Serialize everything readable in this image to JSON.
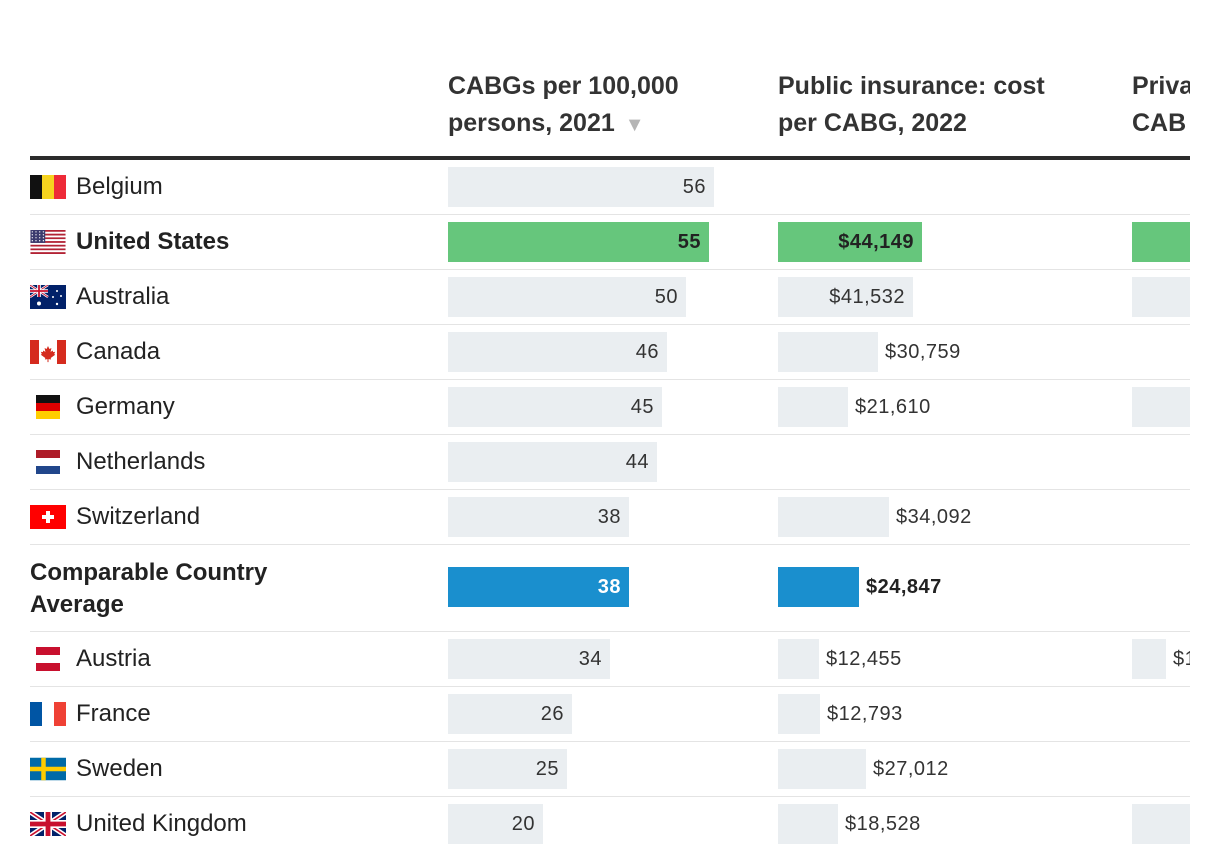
{
  "columns": [
    {
      "line1": "CABGs per 100,000",
      "line2": "persons, 2021",
      "sort_icon": "sort-down-icon"
    },
    {
      "line1": "Public insurance: cost",
      "line2": "per CABG, 2022"
    },
    {
      "line1": "Priva",
      "line2": "CAB"
    }
  ],
  "colors": {
    "bar_default": "#eaeef1",
    "bar_us": "#66c67c",
    "bar_average": "#1a8fce"
  },
  "chart_data": {
    "type": "table",
    "title": "",
    "columns": [
      "CABGs per 100,000 persons, 2021",
      "Public insurance: cost per CABG, 2022",
      "Private insurance: cost per CABG"
    ],
    "sort": "CABGs per 100,000 persons, 2021 (descending)",
    "rows": [
      {
        "country": "Belgium",
        "flag": "belgium-flag",
        "cabgs": 56,
        "cabgs_label": "56",
        "public_cost": null,
        "public_label": "",
        "private_visible": false
      },
      {
        "country": "United States",
        "flag": "us-flag",
        "highlight": "us",
        "cabgs": 55,
        "cabgs_label": "55",
        "public_cost": 44149,
        "public_label": "$44,149",
        "private_visible": true
      },
      {
        "country": "Australia",
        "flag": "australia-flag",
        "cabgs": 50,
        "cabgs_label": "50",
        "public_cost": 41532,
        "public_label": "$41,532",
        "private_visible": true
      },
      {
        "country": "Canada",
        "flag": "canada-flag",
        "cabgs": 46,
        "cabgs_label": "46",
        "public_cost": 30759,
        "public_label": "$30,759",
        "private_visible": false
      },
      {
        "country": "Germany",
        "flag": "germany-flag",
        "cabgs": 45,
        "cabgs_label": "45",
        "public_cost": 21610,
        "public_label": "$21,610",
        "private_visible": true
      },
      {
        "country": "Netherlands",
        "flag": "netherlands-flag",
        "cabgs": 44,
        "cabgs_label": "44",
        "public_cost": null,
        "public_label": "",
        "private_visible": false
      },
      {
        "country": "Switzerland",
        "flag": "switzerland-flag",
        "cabgs": 38,
        "cabgs_label": "38",
        "public_cost": 34092,
        "public_label": "$34,092",
        "private_visible": false
      },
      {
        "country": "Comparable Country Average",
        "flag": "",
        "highlight": "average",
        "cabgs": 38,
        "cabgs_label": "38",
        "public_cost": 24847,
        "public_label": "$24,847",
        "private_visible": false
      },
      {
        "country": "Austria",
        "flag": "austria-flag",
        "cabgs": 34,
        "cabgs_label": "34",
        "public_cost": 12455,
        "public_label": "$12,455",
        "private_visible": true,
        "private_label": "$1"
      },
      {
        "country": "France",
        "flag": "france-flag",
        "cabgs": 26,
        "cabgs_label": "26",
        "public_cost": 12793,
        "public_label": "$12,793",
        "private_visible": false
      },
      {
        "country": "Sweden",
        "flag": "sweden-flag",
        "cabgs": 25,
        "cabgs_label": "25",
        "public_cost": 27012,
        "public_label": "$27,012",
        "private_visible": false
      },
      {
        "country": "United Kingdom",
        "flag": "uk-flag",
        "cabgs": 20,
        "cabgs_label": "20",
        "public_cost": 18528,
        "public_label": "$18,528",
        "private_visible": true
      }
    ]
  }
}
